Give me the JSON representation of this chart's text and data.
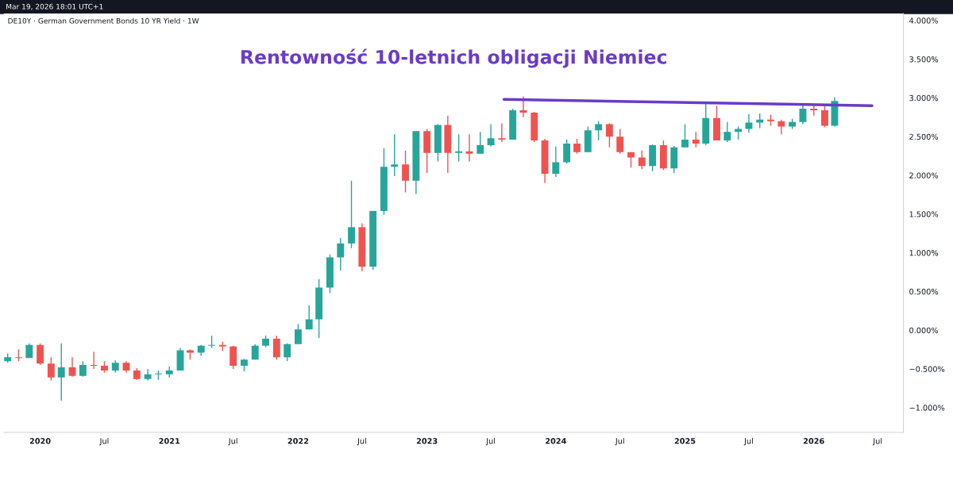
{
  "chart_data": {
    "type": "candlestick",
    "title": "Rentowność 10-letnich obligacji Niemiec",
    "annotations": [
      "Mar 19, 2026 18:01 UTC+1",
      "DE10Y · German Government Bonds 10 YR Yield · 1W"
    ],
    "x": [
      "2019-10",
      "2019-11",
      "2019-12",
      "2020-01",
      "2020-02",
      "2020-03",
      "2020-04",
      "2020-05",
      "2020-06",
      "2020-07",
      "2020-08",
      "2020-09",
      "2020-10",
      "2020-11",
      "2020-12",
      "2021-01",
      "2021-02",
      "2021-03",
      "2021-04",
      "2021-05",
      "2021-06",
      "2021-07",
      "2021-08",
      "2021-09",
      "2021-10",
      "2021-11",
      "2021-12",
      "2022-01",
      "2022-02",
      "2022-03",
      "2022-04",
      "2022-05",
      "2022-06",
      "2022-07",
      "2022-08",
      "2022-09",
      "2022-10",
      "2022-11",
      "2022-12",
      "2023-01",
      "2023-02",
      "2023-03",
      "2023-04",
      "2023-05",
      "2023-06",
      "2023-07",
      "2023-08",
      "2023-09",
      "2023-10",
      "2023-11",
      "2023-12",
      "2024-01",
      "2024-02",
      "2024-03",
      "2024-04",
      "2024-05",
      "2024-06",
      "2024-07",
      "2024-08",
      "2024-09",
      "2024-10",
      "2024-11",
      "2024-12",
      "2025-01",
      "2025-02",
      "2025-03",
      "2025-04",
      "2025-05",
      "2025-06",
      "2025-07",
      "2025-08",
      "2025-09",
      "2025-10",
      "2025-11",
      "2025-12",
      "2026-01",
      "2026-02",
      "2026-03"
    ],
    "ohlc": [
      [
        -0.4,
        -0.3,
        -0.42,
        -0.35
      ],
      [
        -0.35,
        -0.25,
        -0.4,
        -0.36
      ],
      [
        -0.36,
        -0.17,
        -0.36,
        -0.19
      ],
      [
        -0.19,
        -0.17,
        -0.45,
        -0.43
      ],
      [
        -0.43,
        -0.35,
        -0.65,
        -0.61
      ],
      [
        -0.61,
        -0.17,
        -0.91,
        -0.48
      ],
      [
        -0.48,
        -0.35,
        -0.6,
        -0.59
      ],
      [
        -0.59,
        -0.4,
        -0.6,
        -0.45
      ],
      [
        -0.45,
        -0.28,
        -0.5,
        -0.46
      ],
      [
        -0.46,
        -0.4,
        -0.55,
        -0.52
      ],
      [
        -0.52,
        -0.39,
        -0.55,
        -0.42
      ],
      [
        -0.42,
        -0.4,
        -0.55,
        -0.52
      ],
      [
        -0.52,
        -0.49,
        -0.64,
        -0.63
      ],
      [
        -0.63,
        -0.5,
        -0.65,
        -0.57
      ],
      [
        -0.57,
        -0.52,
        -0.64,
        -0.56
      ],
      [
        -0.57,
        -0.47,
        -0.61,
        -0.52
      ],
      [
        -0.52,
        -0.23,
        -0.52,
        -0.26
      ],
      [
        -0.26,
        -0.25,
        -0.38,
        -0.29
      ],
      [
        -0.29,
        -0.19,
        -0.33,
        -0.2
      ],
      [
        -0.2,
        -0.07,
        -0.23,
        -0.19
      ],
      [
        -0.19,
        -0.15,
        -0.27,
        -0.21
      ],
      [
        -0.21,
        -0.2,
        -0.5,
        -0.46
      ],
      [
        -0.46,
        -0.37,
        -0.53,
        -0.38
      ],
      [
        -0.38,
        -0.18,
        -0.38,
        -0.2
      ],
      [
        -0.2,
        -0.07,
        -0.22,
        -0.11
      ],
      [
        -0.11,
        -0.07,
        -0.38,
        -0.35
      ],
      [
        -0.35,
        -0.17,
        -0.4,
        -0.18
      ],
      [
        -0.18,
        0.08,
        -0.18,
        0.01
      ],
      [
        0.01,
        0.32,
        0.01,
        0.14
      ],
      [
        0.14,
        0.66,
        -0.1,
        0.55
      ],
      [
        0.55,
        0.98,
        0.48,
        0.94
      ],
      [
        0.94,
        1.19,
        0.77,
        1.12
      ],
      [
        1.12,
        1.93,
        1.06,
        1.33
      ],
      [
        1.33,
        1.38,
        0.76,
        0.82
      ],
      [
        0.82,
        1.54,
        0.78,
        1.54
      ],
      [
        1.54,
        2.35,
        1.49,
        2.11
      ],
      [
        2.11,
        2.53,
        1.99,
        2.14
      ],
      [
        2.14,
        2.32,
        1.78,
        1.93
      ],
      [
        1.93,
        2.57,
        1.76,
        2.57
      ],
      [
        2.57,
        2.6,
        2.03,
        2.29
      ],
      [
        2.29,
        2.66,
        2.18,
        2.65
      ],
      [
        2.65,
        2.77,
        2.03,
        2.29
      ],
      [
        2.29,
        2.53,
        2.18,
        2.31
      ],
      [
        2.31,
        2.53,
        2.18,
        2.28
      ],
      [
        2.28,
        2.56,
        2.28,
        2.39
      ],
      [
        2.39,
        2.66,
        2.37,
        2.48
      ],
      [
        2.48,
        2.67,
        2.43,
        2.46
      ],
      [
        2.46,
        2.86,
        2.46,
        2.84
      ],
      [
        2.84,
        3.02,
        2.75,
        2.81
      ],
      [
        2.81,
        2.82,
        2.43,
        2.45
      ],
      [
        2.45,
        2.47,
        1.9,
        2.02
      ],
      [
        2.02,
        2.37,
        1.98,
        2.17
      ],
      [
        2.17,
        2.46,
        2.15,
        2.41
      ],
      [
        2.41,
        2.47,
        2.28,
        2.3
      ],
      [
        2.3,
        2.63,
        2.3,
        2.58
      ],
      [
        2.58,
        2.7,
        2.45,
        2.66
      ],
      [
        2.66,
        2.67,
        2.36,
        2.5
      ],
      [
        2.5,
        2.6,
        2.28,
        2.3
      ],
      [
        2.3,
        2.3,
        2.1,
        2.23
      ],
      [
        2.23,
        2.32,
        2.08,
        2.12
      ],
      [
        2.12,
        2.4,
        2.05,
        2.39
      ],
      [
        2.39,
        2.45,
        2.07,
        2.09
      ],
      [
        2.09,
        2.38,
        2.03,
        2.36
      ],
      [
        2.36,
        2.66,
        2.36,
        2.46
      ],
      [
        2.46,
        2.56,
        2.36,
        2.41
      ],
      [
        2.41,
        2.93,
        2.39,
        2.74
      ],
      [
        2.74,
        2.9,
        2.45,
        2.45
      ],
      [
        2.45,
        2.69,
        2.43,
        2.56
      ],
      [
        2.56,
        2.63,
        2.46,
        2.6
      ],
      [
        2.6,
        2.79,
        2.55,
        2.68
      ],
      [
        2.68,
        2.8,
        2.61,
        2.72
      ],
      [
        2.72,
        2.78,
        2.64,
        2.7
      ],
      [
        2.7,
        2.72,
        2.53,
        2.63
      ],
      [
        2.63,
        2.73,
        2.6,
        2.69
      ],
      [
        2.69,
        2.92,
        2.66,
        2.86
      ],
      [
        2.86,
        2.92,
        2.77,
        2.84
      ],
      [
        2.84,
        2.89,
        2.62,
        2.64
      ],
      [
        2.64,
        3.01,
        2.63,
        2.96
      ]
    ],
    "series": [
      {
        "type": "line",
        "color": "#6a3cc4",
        "x": [
          "2023-08-07",
          "2026-06-15"
        ],
        "values": [
          2.98,
          2.9
        ]
      }
    ],
    "xlim": [
      "2019-09-20",
      "2026-09-12"
    ],
    "xticks": [
      {
        "value": "2020-01-01",
        "label": "2020"
      },
      {
        "value": "2020-07-01",
        "label": "Jul"
      },
      {
        "value": "2021-01-01",
        "label": "2021"
      },
      {
        "value": "2021-07-01",
        "label": "Jul"
      },
      {
        "value": "2022-01-01",
        "label": "2022"
      },
      {
        "value": "2022-07-01",
        "label": "Jul"
      },
      {
        "value": "2023-01-01",
        "label": "2023"
      },
      {
        "value": "2023-07-01",
        "label": "Jul"
      },
      {
        "value": "2024-01-01",
        "label": "2024"
      },
      {
        "value": "2024-07-01",
        "label": "Jul"
      },
      {
        "value": "2025-01-01",
        "label": "2025"
      },
      {
        "value": "2025-07-01",
        "label": "Jul"
      },
      {
        "value": "2026-01-01",
        "label": "2026"
      },
      {
        "value": "2026-07-01",
        "label": "Jul"
      }
    ],
    "ylim": [
      -1.32,
      4.09
    ],
    "yticks": [
      {
        "value": -1.0,
        "label": "−1.000%"
      },
      {
        "value": -0.5,
        "label": "−0.500%"
      },
      {
        "value": 0,
        "label": "0.000%"
      },
      {
        "value": 0.5,
        "label": "0.500%"
      },
      {
        "value": 1.0,
        "label": "1.000%"
      },
      {
        "value": 1.5,
        "label": "1.500%"
      },
      {
        "value": 2.0,
        "label": "2.000%"
      },
      {
        "value": 2.5,
        "label": "2.500%"
      },
      {
        "value": 3.0,
        "label": "3.000%"
      },
      {
        "value": 3.5,
        "label": "3.500%"
      },
      {
        "value": 4.0,
        "label": "4.000%"
      }
    ],
    "grid": false
  }
}
